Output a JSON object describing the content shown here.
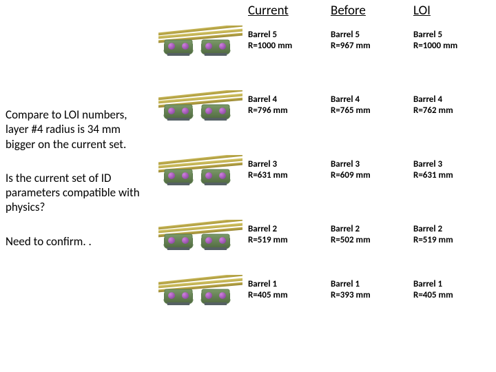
{
  "sidebar": {
    "p1": "Compare to LOI numbers, layer #4 radius is 34 mm bigger on the current set.",
    "p2": "Is the current set of ID parameters compatible with physics?",
    "p3": "Need to confirm. ."
  },
  "headers": {
    "current": "Current",
    "before": "Before",
    "loi": "LOI"
  },
  "rows": [
    {
      "name": "Barrel 5",
      "cur": "R=1000 mm",
      "bef": "R=967 mm",
      "loi": "R=1000 mm"
    },
    {
      "name": "Barrel 4",
      "cur": "R=796 mm",
      "bef": "R=765 mm",
      "loi": "R=762 mm"
    },
    {
      "name": "Barrel 3",
      "cur": "R=631 mm",
      "bef": "R=609 mm",
      "loi": "R=631 mm"
    },
    {
      "name": "Barrel 2",
      "cur": "R=519 mm",
      "bef": "R=502 mm",
      "loi": "R=519 mm"
    },
    {
      "name": "Barrel 1",
      "cur": "R=405 mm",
      "bef": "R=393 mm",
      "loi": "R=405 mm"
    }
  ],
  "style": {
    "text_color": "#000000",
    "bg_color": "#ffffff",
    "header_fontsize": 19,
    "cell_fontsize": 13,
    "sidebar_fontsize": 17
  }
}
